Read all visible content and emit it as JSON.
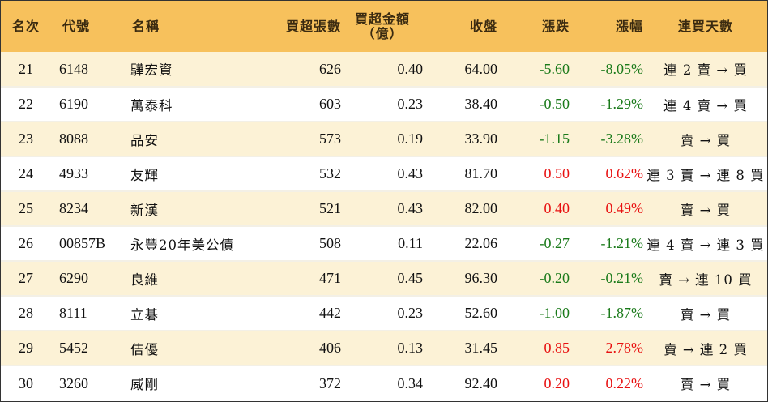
{
  "headers": {
    "rank": "名次",
    "code": "代號",
    "name": "名稱",
    "net_buy_lots": "買超張數",
    "net_buy_amount_line1": "買超金額",
    "net_buy_amount_line2": "（億）",
    "close": "收盤",
    "change": "漲跌",
    "change_pct": "漲幅",
    "consecutive_days": "連買天數"
  },
  "rows": [
    {
      "rank": "21",
      "code": "6148",
      "name": "驊宏資",
      "lots": "626",
      "amount": "0.40",
      "close": "64.00",
      "change": "-5.60",
      "pct": "-8.05%",
      "trend": "down",
      "days": "連 2 賣 → 買"
    },
    {
      "rank": "22",
      "code": "6190",
      "name": "萬泰科",
      "lots": "603",
      "amount": "0.23",
      "close": "38.40",
      "change": "-0.50",
      "pct": "-1.29%",
      "trend": "down",
      "days": "連 4 賣 → 買"
    },
    {
      "rank": "23",
      "code": "8088",
      "name": "品安",
      "lots": "573",
      "amount": "0.19",
      "close": "33.90",
      "change": "-1.15",
      "pct": "-3.28%",
      "trend": "down",
      "days": "賣 → 買"
    },
    {
      "rank": "24",
      "code": "4933",
      "name": "友輝",
      "lots": "532",
      "amount": "0.43",
      "close": "81.70",
      "change": "0.50",
      "pct": "0.62%",
      "trend": "up",
      "days": "連 3 賣 → 連 8 買"
    },
    {
      "rank": "25",
      "code": "8234",
      "name": "新漢",
      "lots": "521",
      "amount": "0.43",
      "close": "82.00",
      "change": "0.40",
      "pct": "0.49%",
      "trend": "up",
      "days": "賣 → 買"
    },
    {
      "rank": "26",
      "code": "00857B",
      "name": "永豐20年美公債",
      "lots": "508",
      "amount": "0.11",
      "close": "22.06",
      "change": "-0.27",
      "pct": "-1.21%",
      "trend": "down",
      "days": "連 4 賣 → 連 3 買"
    },
    {
      "rank": "27",
      "code": "6290",
      "name": "良維",
      "lots": "471",
      "amount": "0.45",
      "close": "96.30",
      "change": "-0.20",
      "pct": "-0.21%",
      "trend": "down",
      "days": "賣 → 連 10 買"
    },
    {
      "rank": "28",
      "code": "8111",
      "name": "立碁",
      "lots": "442",
      "amount": "0.23",
      "close": "52.60",
      "change": "-1.00",
      "pct": "-1.87%",
      "trend": "down",
      "days": "賣 → 買"
    },
    {
      "rank": "29",
      "code": "5452",
      "name": "佶優",
      "lots": "406",
      "amount": "0.13",
      "close": "31.45",
      "change": "0.85",
      "pct": "2.78%",
      "trend": "up",
      "days": "賣 → 連 2 買"
    },
    {
      "rank": "30",
      "code": "3260",
      "name": "威剛",
      "lots": "372",
      "amount": "0.34",
      "close": "92.40",
      "change": "0.20",
      "pct": "0.22%",
      "trend": "up",
      "days": "賣 → 買"
    }
  ],
  "colors": {
    "header_bg": "#f7c15c",
    "odd_row_bg": "#fcf2d6",
    "even_row_bg": "#ffffff",
    "negative": "#1a7a1a",
    "positive": "#e81010"
  }
}
